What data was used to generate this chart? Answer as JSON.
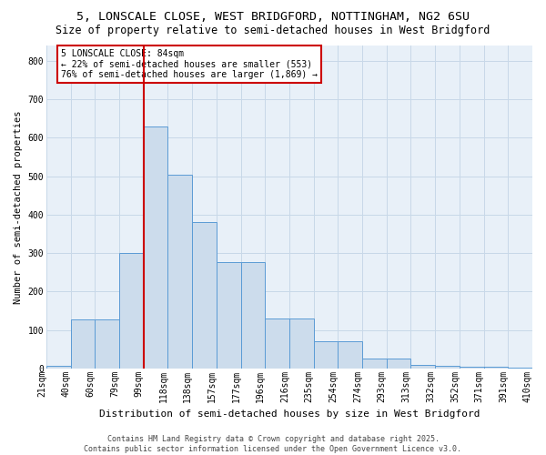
{
  "title1": "5, LONSCALE CLOSE, WEST BRIDGFORD, NOTTINGHAM, NG2 6SU",
  "title2": "Size of property relative to semi-detached houses in West Bridgford",
  "xlabel": "Distribution of semi-detached houses by size in West Bridgford",
  "ylabel": "Number of semi-detached properties",
  "bar_values": [
    8,
    128,
    128,
    300,
    630,
    503,
    381,
    277,
    277,
    130,
    130,
    70,
    70,
    25,
    25,
    10,
    7,
    5,
    4,
    2
  ],
  "bin_labels": [
    "21sqm",
    "40sqm",
    "60sqm",
    "79sqm",
    "99sqm",
    "118sqm",
    "138sqm",
    "157sqm",
    "177sqm",
    "196sqm",
    "216sqm",
    "235sqm",
    "254sqm",
    "274sqm",
    "293sqm",
    "313sqm",
    "332sqm",
    "352sqm",
    "371sqm",
    "391sqm",
    "410sqm"
  ],
  "bar_color": "#ccdcec",
  "bar_edge_color": "#5b9bd5",
  "vline_color": "#cc0000",
  "vline_x": 3.5,
  "annotation_text": "5 LONSCALE CLOSE: 84sqm\n← 22% of semi-detached houses are smaller (553)\n76% of semi-detached houses are larger (1,869) →",
  "annotation_box_color": "#ffffff",
  "annotation_box_edge_color": "#cc0000",
  "footnote": "Contains HM Land Registry data © Crown copyright and database right 2025.\nContains public sector information licensed under the Open Government Licence v3.0.",
  "ylim": [
    0,
    840
  ],
  "yticks": [
    0,
    100,
    200,
    300,
    400,
    500,
    600,
    700,
    800
  ],
  "grid_color": "#c8d8e8",
  "bg_color": "#e8f0f8",
  "title1_fontsize": 9.5,
  "title2_fontsize": 8.5,
  "ylabel_fontsize": 7.5,
  "xlabel_fontsize": 8,
  "tick_fontsize": 7,
  "annot_fontsize": 7,
  "footnote_fontsize": 6
}
